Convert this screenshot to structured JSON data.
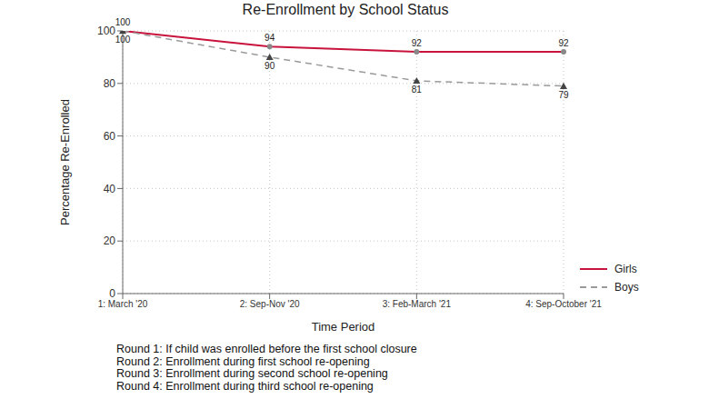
{
  "chart_data": {
    "type": "line",
    "title": "Re-Enrollment by School Status",
    "x_label": "Time Period",
    "y_label": "Percentage Re-Enrolled",
    "categories": [
      "1: March '20",
      "2: Sep-Nov '20",
      "3: Feb-March '21",
      "4: Sep-October '21"
    ],
    "series": [
      {
        "name": "Girls",
        "color": "#c8143c",
        "marker": "circle",
        "line_style": "solid",
        "values": [
          100,
          94,
          92,
          92
        ]
      },
      {
        "name": "Boys",
        "color": "#9a9a9a",
        "marker": "triangle",
        "line_style": "dashed",
        "values": [
          100,
          90,
          81,
          79
        ]
      }
    ],
    "ylim": [
      0,
      100
    ],
    "yticks": [
      0,
      20,
      40,
      60,
      80,
      100
    ],
    "grid": true,
    "legend": "right",
    "data_labels": true,
    "annotations": [
      "Round 1: If child was enrolled before the first school closure",
      "Round 2: Enrollment during first school re-opening",
      "Round 3: Enrollment during second school re-opening",
      "Round 4: Enrollment during third school re-opening"
    ]
  }
}
